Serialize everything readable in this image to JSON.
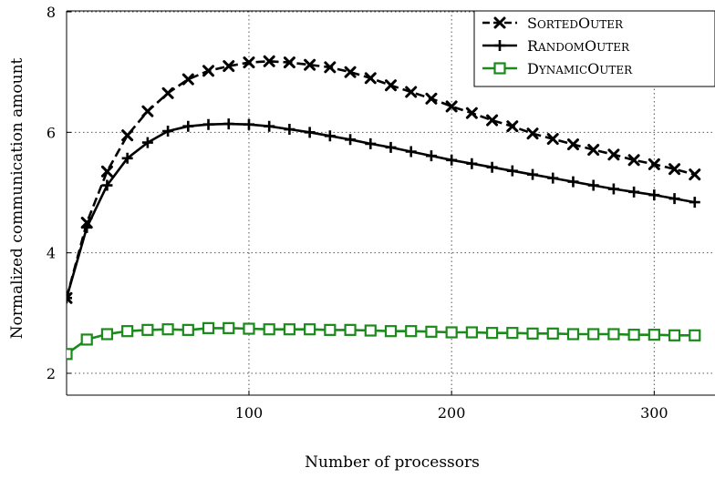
{
  "chart_data": {
    "type": "line",
    "xlabel": "Number of processors",
    "ylabel": "Normalized communication amount",
    "xlim": [
      10,
      330
    ],
    "ylim": [
      1.5,
      8.1
    ],
    "xticks": [
      100,
      200,
      300
    ],
    "yticks": [
      2,
      4,
      6,
      8
    ],
    "xtick_labels": [
      "100",
      "200",
      "300"
    ],
    "ytick_labels": [
      "2",
      "4",
      "6",
      "8"
    ],
    "grid": true,
    "legend_position": "top-right",
    "x": [
      10,
      20,
      30,
      40,
      50,
      60,
      70,
      80,
      90,
      100,
      110,
      120,
      130,
      140,
      150,
      160,
      170,
      180,
      190,
      200,
      210,
      220,
      230,
      240,
      250,
      260,
      270,
      280,
      290,
      300,
      310,
      320
    ],
    "series": [
      {
        "name": "SortedOuter",
        "color": "#000000",
        "line_style": "dashed",
        "marker": "x",
        "values": [
          3.25,
          4.5,
          5.35,
          5.95,
          6.35,
          6.65,
          6.88,
          7.02,
          7.1,
          7.16,
          7.18,
          7.16,
          7.12,
          7.08,
          7.0,
          6.9,
          6.78,
          6.67,
          6.56,
          6.43,
          6.32,
          6.2,
          6.1,
          5.98,
          5.89,
          5.8,
          5.71,
          5.63,
          5.54,
          5.47,
          5.39,
          5.3
        ]
      },
      {
        "name": "RandomOuter",
        "color": "#000000",
        "line_style": "solid",
        "marker": "plus",
        "values": [
          3.25,
          4.42,
          5.12,
          5.57,
          5.83,
          6.02,
          6.1,
          6.13,
          6.14,
          6.13,
          6.1,
          6.05,
          6.0,
          5.94,
          5.88,
          5.81,
          5.75,
          5.68,
          5.61,
          5.54,
          5.48,
          5.42,
          5.36,
          5.3,
          5.24,
          5.18,
          5.12,
          5.06,
          5.01,
          4.96,
          4.9,
          4.84
        ]
      },
      {
        "name": "DynamicOuter",
        "color": "#1a8a1a",
        "line_style": "solid",
        "marker": "square",
        "values": [
          2.32,
          2.56,
          2.65,
          2.7,
          2.72,
          2.73,
          2.72,
          2.75,
          2.75,
          2.74,
          2.73,
          2.73,
          2.73,
          2.72,
          2.72,
          2.71,
          2.7,
          2.7,
          2.69,
          2.68,
          2.68,
          2.67,
          2.67,
          2.66,
          2.66,
          2.65,
          2.65,
          2.65,
          2.64,
          2.64,
          2.63,
          2.63
        ]
      }
    ],
    "legend": [
      {
        "first": "S",
        "rest": "ORTED",
        "first2": "O",
        "rest2": "UTER"
      },
      {
        "first": "R",
        "rest": "ANDOM",
        "first2": "O",
        "rest2": "UTER"
      },
      {
        "first": "D",
        "rest": "YNAMIC",
        "first2": "O",
        "rest2": "UTER"
      }
    ]
  }
}
